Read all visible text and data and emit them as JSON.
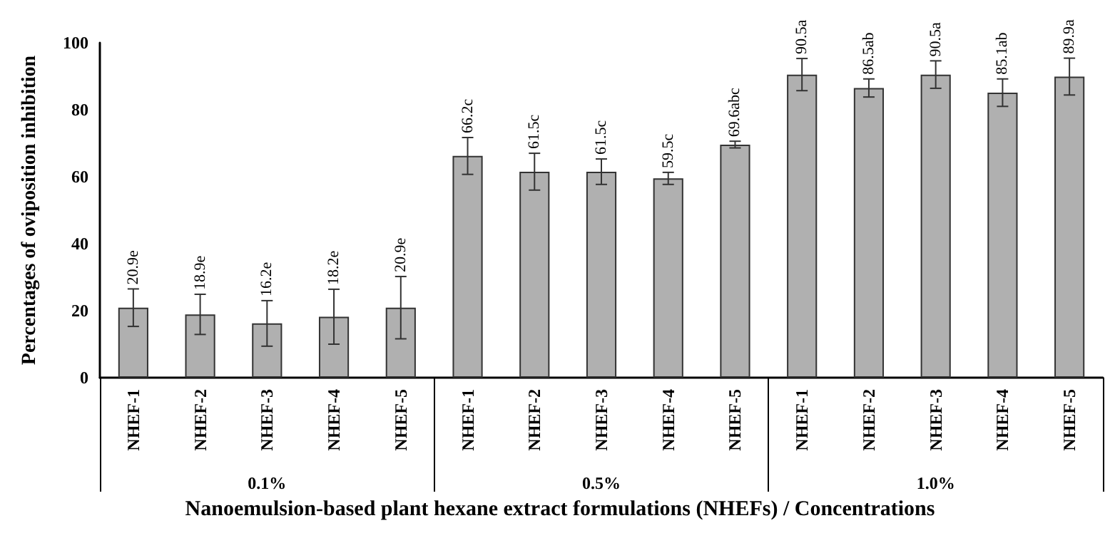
{
  "chart_data": {
    "type": "bar",
    "xlabel": "Nanoemulsion-based plant hexane extract formulations (NHEFs) / Concentrations",
    "ylabel": "Percentages of oviposition inhibition",
    "categories": [
      "NHEF-1",
      "NHEF-2",
      "NHEF-3",
      "NHEF-4",
      "NHEF-5",
      "NHEF-1",
      "NHEF-2",
      "NHEF-3",
      "NHEF-4",
      "NHEF-5",
      "NHEF-1",
      "NHEF-2",
      "NHEF-3",
      "NHEF-4",
      "NHEF-5"
    ],
    "annotations": [
      "0.1%",
      "0.5%",
      "1.0%"
    ],
    "series": [
      {
        "color": "#b0b0b0",
        "values": [
          20.9,
          18.9,
          16.2,
          18.2,
          20.9,
          66.2,
          61.5,
          61.5,
          59.5,
          69.6,
          90.5,
          86.5,
          90.5,
          85.1,
          89.9
        ],
        "errors": [
          5.6,
          6.0,
          6.8,
          8.2,
          9.3,
          5.5,
          5.5,
          3.8,
          1.8,
          1.0,
          4.8,
          2.7,
          4.1,
          4.1,
          5.5
        ],
        "value_labels": [
          "20.9e",
          "18.9e",
          "16.2e",
          "18.2e",
          "20.9e",
          "66.2c",
          "61.5c",
          "61.5c",
          "59.5c",
          "69.6abc",
          "90.5a",
          "86.5ab",
          "90.5a",
          "85.1ab",
          "89.9a"
        ]
      }
    ],
    "ylim": [
      0,
      100
    ],
    "yticks": [
      0,
      20,
      40,
      60,
      80,
      100
    ],
    "grid": false
  }
}
